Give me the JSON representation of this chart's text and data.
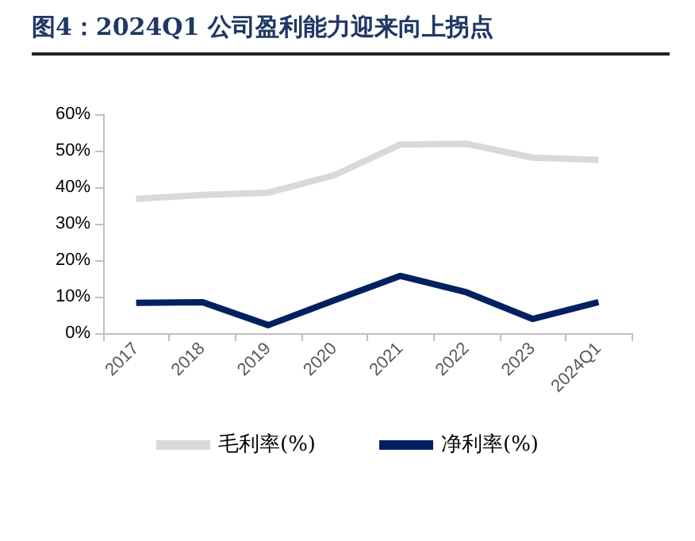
{
  "chart_data": {
    "type": "line",
    "title": "图4：2024Q1 公司盈利能力迎来向上拐点",
    "categories": [
      "2017",
      "2018",
      "2019",
      "2020",
      "2021",
      "2022",
      "2023",
      "2024Q1"
    ],
    "series": [
      {
        "name": "毛利率(%)",
        "color": "#d9d9d9",
        "values": [
          36.8,
          37.9,
          38.5,
          43.3,
          51.7,
          51.9,
          48.1,
          47.5
        ]
      },
      {
        "name": "净利率(%)",
        "color": "#002060",
        "values": [
          8.3,
          8.5,
          2.2,
          9.0,
          15.7,
          11.2,
          3.9,
          8.5
        ]
      }
    ],
    "ylim": [
      0,
      60
    ],
    "yticks": [
      {
        "value": 0,
        "label": "0%"
      },
      {
        "value": 10,
        "label": "10%"
      },
      {
        "value": 20,
        "label": "20%"
      },
      {
        "value": 30,
        "label": "30%"
      },
      {
        "value": 40,
        "label": "40%"
      },
      {
        "value": 50,
        "label": "50%"
      },
      {
        "value": 60,
        "label": "60%"
      }
    ],
    "grid": false,
    "legend": "bottom",
    "marker": "none",
    "line_style": "solid"
  }
}
